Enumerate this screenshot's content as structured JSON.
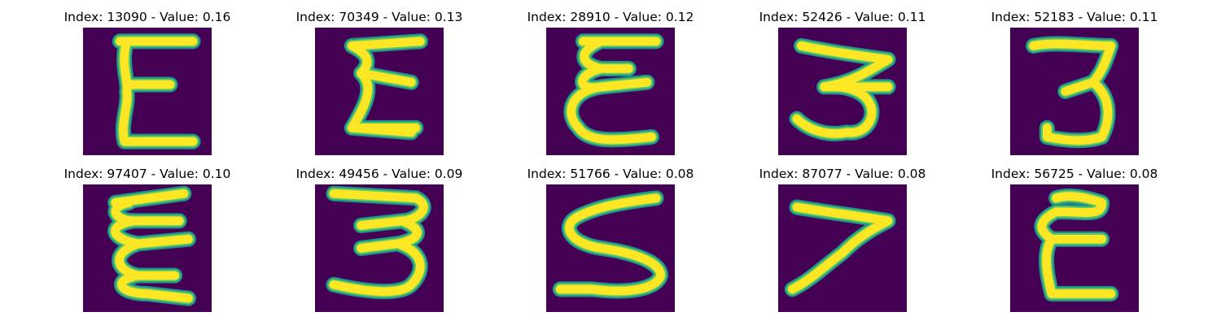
{
  "panels": [
    {
      "index": 13090,
      "value": "0.16",
      "title": "Index: 13090 - Value: 0.16",
      "glyph": "E"
    },
    {
      "index": 70349,
      "value": "0.13",
      "title": "Index: 70349 - Value: 0.13",
      "glyph": "E"
    },
    {
      "index": 28910,
      "value": "0.12",
      "title": "Index: 28910 - Value: 0.12",
      "glyph": "E"
    },
    {
      "index": 52426,
      "value": "0.11",
      "title": "Index: 52426 - Value: 0.11",
      "glyph": "3"
    },
    {
      "index": 52183,
      "value": "0.11",
      "title": "Index: 52183 - Value: 0.11",
      "glyph": "3"
    },
    {
      "index": 97407,
      "value": "0.10",
      "title": "Index: 97407 - Value: 0.10",
      "glyph": "E"
    },
    {
      "index": 49456,
      "value": "0.09",
      "title": "Index: 49456 - Value: 0.09",
      "glyph": "3"
    },
    {
      "index": 51766,
      "value": "0.08",
      "title": "Index: 51766 - Value: 0.08",
      "glyph": "S"
    },
    {
      "index": 87077,
      "value": "0.08",
      "title": "Index: 87077 - Value: 0.08",
      "glyph": "7"
    },
    {
      "index": 56725,
      "value": "0.08",
      "title": "Index: 56725 - Value: 0.08",
      "glyph": "E"
    }
  ],
  "colors": {
    "background": "#440154",
    "stroke_edge": "#21918c",
    "stroke_mid": "#5ec962",
    "stroke_core": "#fde725"
  }
}
